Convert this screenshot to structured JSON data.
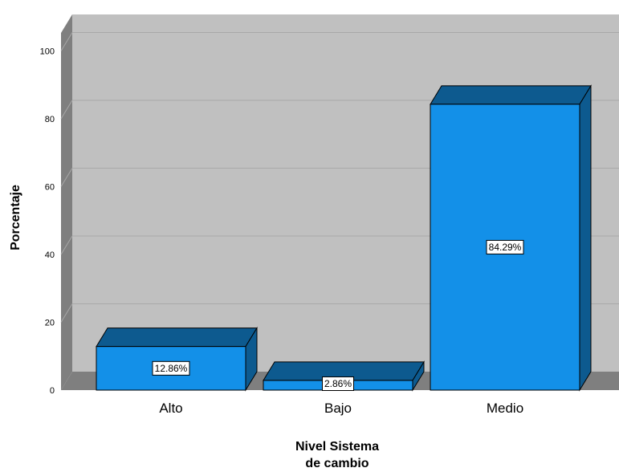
{
  "chart_data": {
    "type": "bar",
    "categories": [
      "Alto",
      "Bajo",
      "Medio"
    ],
    "values": [
      12.86,
      2.86,
      84.29
    ],
    "data_labels": [
      "12.86%",
      "2.86%",
      "84.29%"
    ],
    "xlabel": [
      "Nivel Sistema",
      "de cambio"
    ],
    "ylabel": "Porcentaje",
    "ylim": [
      0,
      100
    ],
    "yticks": [
      0,
      20,
      40,
      60,
      80,
      100
    ],
    "grid": true,
    "style": "3d",
    "colors": {
      "bar_front": "#1390E8",
      "bar_side": "#0D5A8F",
      "wall": "#C0C0C0",
      "wall_side": "#7F7F7F",
      "gridline": "#A8A8A8"
    }
  }
}
